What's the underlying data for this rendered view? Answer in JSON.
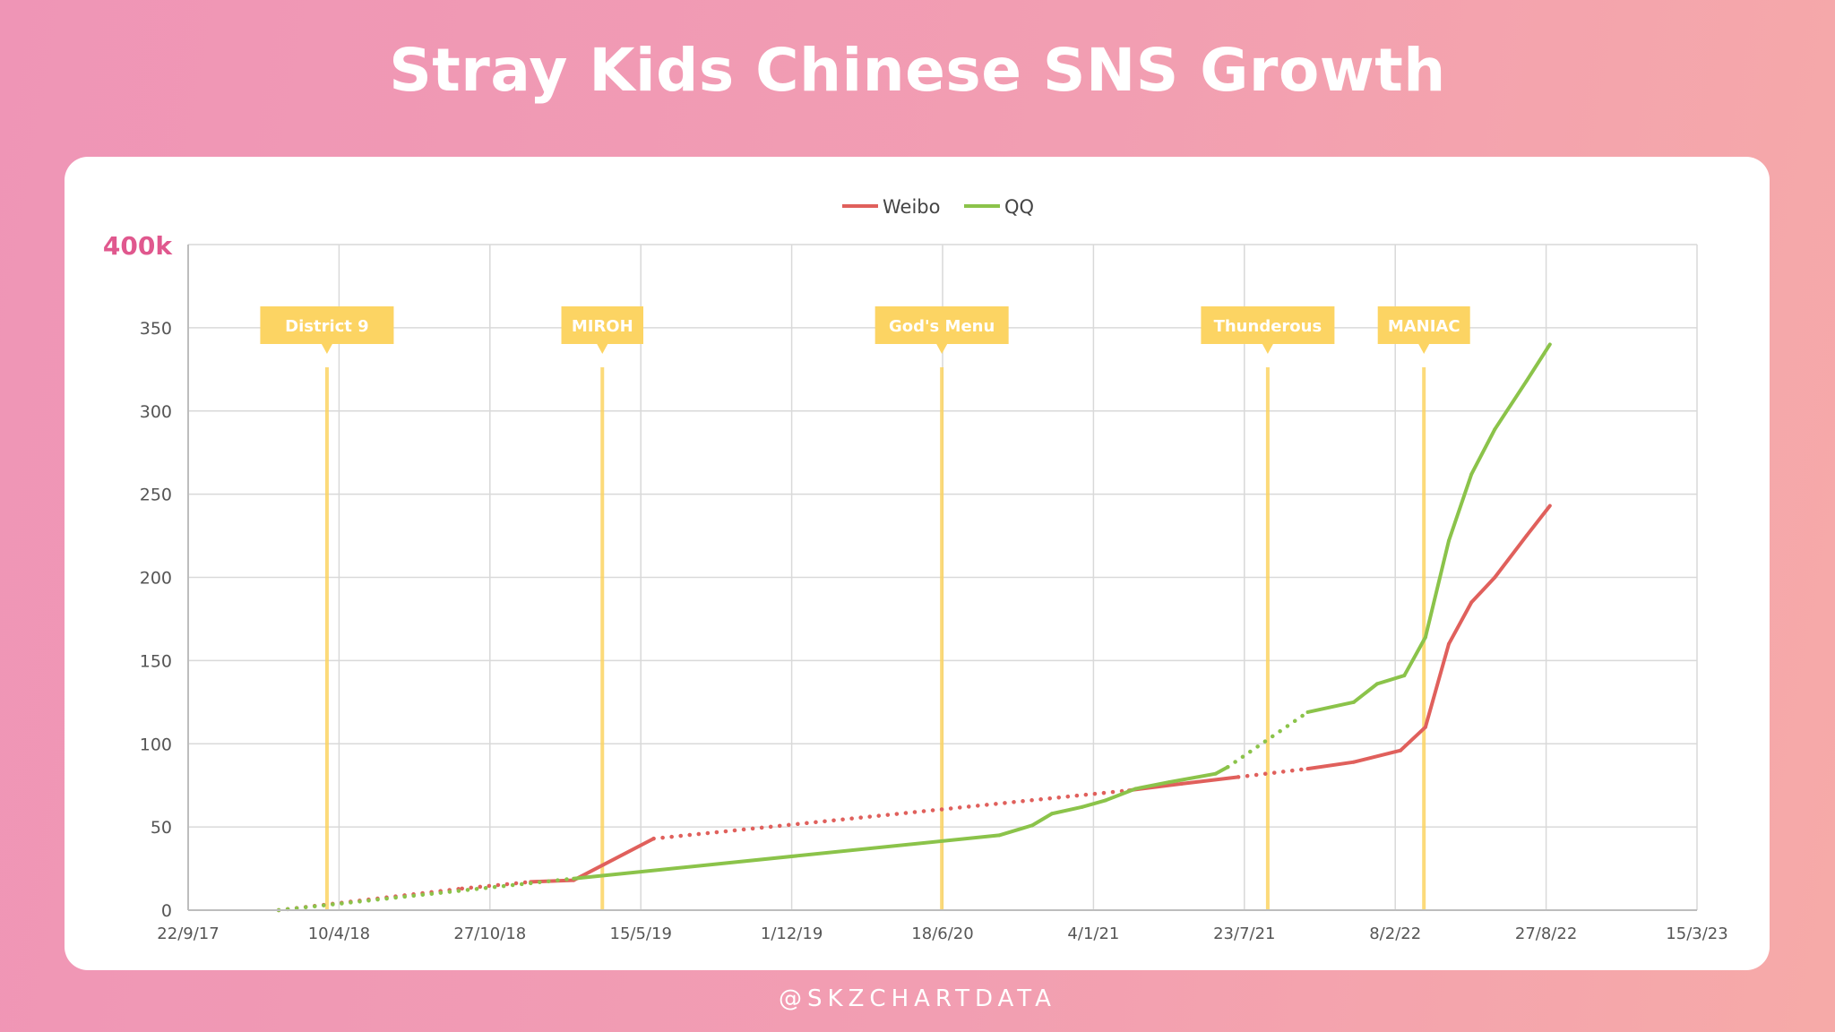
{
  "page": {
    "title": "Stray Kids Chinese SNS Growth",
    "footer": "@SKZCHARTDATA"
  },
  "colors": {
    "weibo": "#e0605c",
    "qq": "#8bc34a",
    "release": "#fcd463",
    "top_label": "#e0588e"
  },
  "chart_data": {
    "type": "line",
    "title": "Stray Kids Chinese SNS Growth",
    "y_top_label": "400k",
    "x_ticks": [
      "22/9/17",
      "10/4/18",
      "27/10/18",
      "15/5/19",
      "1/12/19",
      "18/6/20",
      "4/1/21",
      "23/7/21",
      "8/2/22",
      "27/8/22",
      "15/3/23"
    ],
    "y_ticks": [
      "0",
      "50",
      "100",
      "150",
      "200",
      "250",
      "300",
      "350"
    ],
    "xlim": [
      "22/9/17",
      "15/3/23"
    ],
    "ylim": [
      0,
      400
    ],
    "grid": true,
    "legend_position": "top-center",
    "series": [
      {
        "name": "Weibo",
        "points": [
          {
            "x": "2018-01-20",
            "y": 0,
            "s": "d"
          },
          {
            "x": "2018-09-20",
            "y": 13,
            "s": "d"
          },
          {
            "x": "2018-12-20",
            "y": 17,
            "s": "d"
          },
          {
            "x": "2019-02-15",
            "y": 18,
            "s": "s"
          },
          {
            "x": "2019-06-01",
            "y": 43,
            "s": "s"
          },
          {
            "x": "2021-02-20",
            "y": 72,
            "s": "d"
          },
          {
            "x": "2021-05-01",
            "y": 76,
            "s": "s"
          },
          {
            "x": "2021-07-15",
            "y": 80,
            "s": "s"
          },
          {
            "x": "2021-10-15",
            "y": 85,
            "s": "d"
          },
          {
            "x": "2021-12-15",
            "y": 89,
            "s": "s"
          },
          {
            "x": "2022-02-15",
            "y": 96,
            "s": "s"
          },
          {
            "x": "2022-03-20",
            "y": 110,
            "s": "s"
          },
          {
            "x": "2022-04-20",
            "y": 160,
            "s": "s"
          },
          {
            "x": "2022-05-20",
            "y": 185,
            "s": "s"
          },
          {
            "x": "2022-06-20",
            "y": 200,
            "s": "s"
          },
          {
            "x": "2022-08-01",
            "y": 225,
            "s": "s"
          },
          {
            "x": "2022-09-01",
            "y": 243,
            "s": "s"
          }
        ]
      },
      {
        "name": "QQ",
        "points": [
          {
            "x": "2018-01-20",
            "y": 0,
            "s": "d"
          },
          {
            "x": "2019-02-15",
            "y": 19,
            "s": "d"
          },
          {
            "x": "2020-09-01",
            "y": 45,
            "s": "s"
          },
          {
            "x": "2020-10-15",
            "y": 51,
            "s": "s"
          },
          {
            "x": "2020-11-10",
            "y": 58,
            "s": "s"
          },
          {
            "x": "2020-12-20",
            "y": 62,
            "s": "s"
          },
          {
            "x": "2021-01-20",
            "y": 66,
            "s": "s"
          },
          {
            "x": "2021-03-01",
            "y": 73,
            "s": "s"
          },
          {
            "x": "2021-04-15",
            "y": 77,
            "s": "s"
          },
          {
            "x": "2021-06-15",
            "y": 82,
            "s": "s"
          },
          {
            "x": "2021-07-01",
            "y": 86,
            "s": "s"
          },
          {
            "x": "2021-10-15",
            "y": 119,
            "s": "d"
          },
          {
            "x": "2021-12-15",
            "y": 125,
            "s": "s"
          },
          {
            "x": "2022-01-15",
            "y": 136,
            "s": "s"
          },
          {
            "x": "2022-02-20",
            "y": 141,
            "s": "s"
          },
          {
            "x": "2022-03-20",
            "y": 164,
            "s": "s"
          },
          {
            "x": "2022-04-20",
            "y": 222,
            "s": "s"
          },
          {
            "x": "2022-05-20",
            "y": 262,
            "s": "s"
          },
          {
            "x": "2022-06-20",
            "y": 289,
            "s": "s"
          },
          {
            "x": "2022-08-01",
            "y": 318,
            "s": "s"
          },
          {
            "x": "2022-09-01",
            "y": 340,
            "s": "s"
          }
        ]
      }
    ],
    "annotations": [
      {
        "label": "District 9",
        "date": "2018-03-25"
      },
      {
        "label": "MIROH",
        "date": "2019-03-25"
      },
      {
        "label": "God's Menu",
        "date": "2020-06-17"
      },
      {
        "label": "Thunderous",
        "date": "2021-08-23"
      },
      {
        "label": "MANIAC",
        "date": "2022-03-18"
      }
    ]
  }
}
